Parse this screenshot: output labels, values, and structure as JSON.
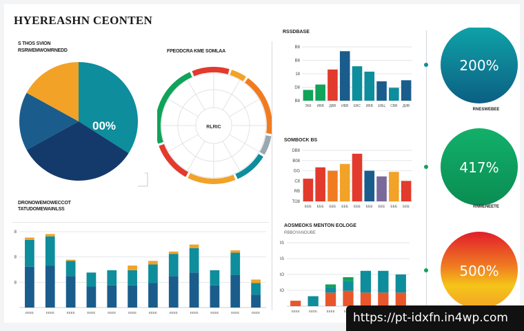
{
  "header": {
    "title": "HYEREASHN CEONTEN"
  },
  "pie_section": {
    "subtitle": "S ТНОS SVION",
    "caption": "RSRWEMWOMRNEDD"
  },
  "ring_section": {
    "title": "FPEODCRA KME SOMLAA",
    "center_label": "RLRIC"
  },
  "left_bars_section": {
    "caption1": "DRONOWEMOWECCOT",
    "caption2": "TATUDOMEWAINLSS"
  },
  "kpis": [
    {
      "value": "200%",
      "caption": "RNESWEBEE",
      "accent": "#0f8f9a"
    },
    {
      "value": "417%",
      "caption": "RNMENEETE",
      "accent": "#10a35a"
    },
    {
      "value": "500%",
      "caption": "",
      "accent": "#e11d2a"
    }
  ],
  "chart_data": [
    {
      "type": "pie",
      "title": "",
      "slices": [
        {
          "value": 34,
          "color": "#0e8d9c"
        },
        {
          "value": 33,
          "color": "#143a6b"
        },
        {
          "value": 16,
          "color": "#1a5d8c"
        },
        {
          "value": 17,
          "color": "#f2a227"
        }
      ],
      "center_label": "00%"
    },
    {
      "type": "pie",
      "title": "FPEODCRA KME SOMLAA",
      "style": "ring",
      "slices": [
        {
          "value": 11,
          "color": "#e23a2c"
        },
        {
          "value": 5,
          "color": "#f2a227"
        },
        {
          "value": 18,
          "color": "#f07c22"
        },
        {
          "value": 6,
          "color": "#9aa8b0"
        },
        {
          "value": 10,
          "color": "#0e8d9c"
        },
        {
          "value": 14,
          "color": "#f2a227"
        },
        {
          "value": 12,
          "color": "#e23a2c"
        },
        {
          "value": 24,
          "color": "#10a35a"
        }
      ]
    },
    {
      "type": "bar",
      "title": "RSSDBASE",
      "ytick_labels": [
        "B8",
        "D8",
        "18",
        "B8",
        "B8"
      ],
      "categories": [
        "ЭКК",
        "ИВВ",
        "ДВВ",
        "ИВВ",
        "ЕВС",
        "ИВВ",
        "ЕВЦ",
        "СВВ",
        "ДИВ"
      ],
      "values": [
        10,
        15,
        29,
        46,
        32,
        27,
        18,
        12,
        19
      ],
      "colors": [
        "#10a35a",
        "#10a35a",
        "#e23a2c",
        "#1a5d8c",
        "#0e8d9c",
        "#0e8d9c",
        "#1a5d8c",
        "#0e8d9c",
        "#1a5d8c"
      ],
      "ylim": [
        0,
        50
      ]
    },
    {
      "type": "bar",
      "title": "SOMBOCK BS",
      "ytick_labels": [
        "TO8",
        "RB",
        "C8",
        "GG",
        "B08",
        "DB8"
      ],
      "categories": [
        "ЕЕЕ",
        "ЕЕЕ",
        "ЕЕЕ",
        "ЕЕЕ",
        "ЕЕЕ",
        "ЕЕЕ",
        "ЕЕЕ",
        "ЕЕЕ",
        "ЕЕЕ"
      ],
      "values": [
        20,
        30,
        27,
        33,
        42,
        27,
        22,
        26,
        18
      ],
      "colors": [
        "#e23a2c",
        "#e23a2c",
        "#f07c22",
        "#f2a227",
        "#e23a2c",
        "#1a5d8c",
        "#7a6a9b",
        "#f2a227",
        "#e23a2c"
      ],
      "ylim": [
        0,
        45
      ]
    },
    {
      "type": "bar",
      "title": "",
      "stacked": true,
      "ytick_labels": [
        "8",
        "8",
        "8"
      ],
      "categories": [
        "ЕЕЕЕ",
        "ЕЕЕЕ",
        "ЕЕЕЕ",
        "ЕЕЕЕ",
        "ЕЕЕЕ",
        "ЕЕЕЕ",
        "ЕЕЕЕ",
        "ЕЕЕЕ",
        "ЕЕЕЕ",
        "ЕЕЕЕ",
        "ЕЕЕЕ",
        "ЕЕЕЕ"
      ],
      "series": [
        {
          "values": [
            35,
            36,
            27,
            18,
            19,
            19,
            21,
            27,
            30,
            19,
            28,
            11
          ],
          "color": "#1a5d8c"
        },
        {
          "values": [
            23,
            25,
            13,
            12,
            13,
            13,
            16,
            19,
            21,
            13,
            19,
            10
          ],
          "color": "#0e8d9c"
        },
        {
          "values": [
            2,
            2,
            1,
            0,
            0,
            4,
            3,
            2,
            3,
            0,
            2,
            3
          ],
          "color": "#f2a227"
        }
      ],
      "ylim": [
        0,
        65
      ]
    },
    {
      "type": "bar",
      "title": "AOSMEOKS MENTON EOLOGE",
      "subtitle": "RBBOYANOUBE",
      "stacked": true,
      "ytick_labels": [
        "LBO",
        "IBO",
        "BGS",
        "IBS"
      ],
      "categories": [
        "ЕЕЕЕ",
        "ЕЕЕЕ",
        "ЕЕЕЕ",
        "ЕЕЕЕ",
        "ЕЕЕЕ",
        "ЕЕЕЕ",
        "ЕЕЕЕ"
      ],
      "series": [
        {
          "values": [
            6,
            0,
            15,
            17,
            15,
            15,
            15
          ],
          "color": "#e8572b"
        },
        {
          "values": [
            0,
            11,
            6,
            11,
            24,
            24,
            20
          ],
          "color": "#0e8d9c"
        },
        {
          "values": [
            0,
            0,
            3,
            4,
            0,
            0,
            0
          ],
          "color": "#10a35a"
        }
      ],
      "ylim": [
        0,
        70
      ]
    }
  ],
  "watermark": {
    "text": "https://pt-idxfn.in4wp.com"
  }
}
